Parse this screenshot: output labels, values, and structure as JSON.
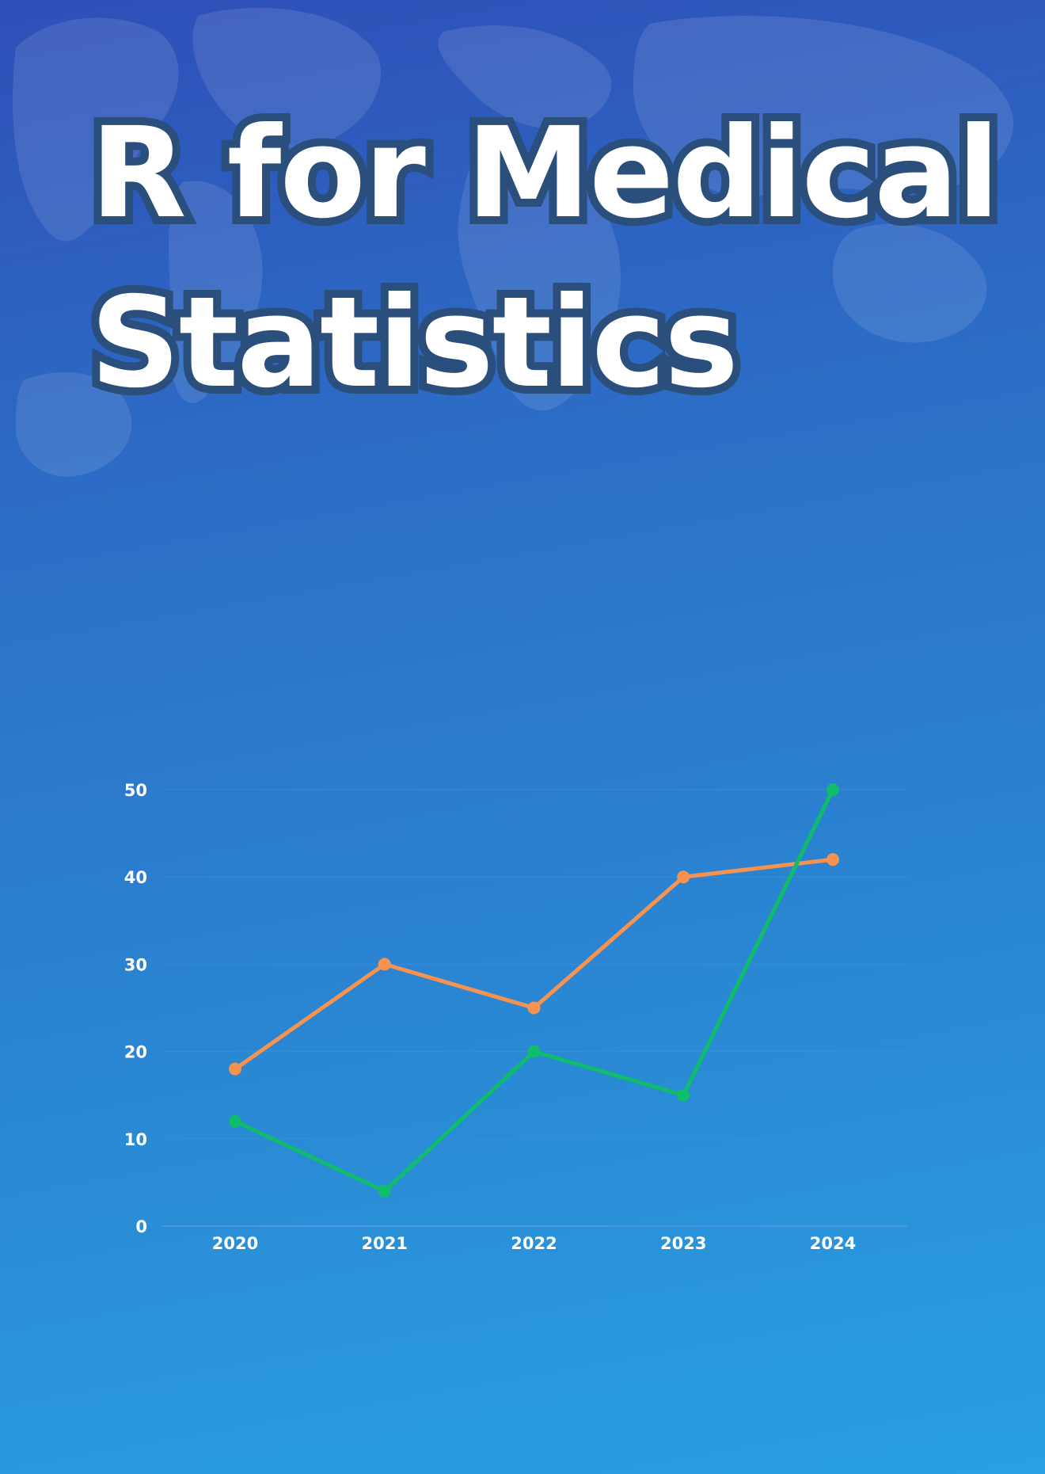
{
  "title": "R for Medical Statistics",
  "colors": {
    "background_top": "#2f4fb8",
    "background_bottom": "#29a0e2",
    "title_fill": "#ffffff",
    "title_outline": "#2b4f7c",
    "grid": "#4a8fd9",
    "tick_text": "#ffffff"
  },
  "chart_data": {
    "type": "line",
    "x": [
      "2020",
      "2021",
      "2022",
      "2023",
      "2024"
    ],
    "series": [
      {
        "color": "#f7934f",
        "values": [
          18,
          30,
          25,
          40,
          42
        ]
      },
      {
        "color": "#0fbd6a",
        "values": [
          12,
          4,
          20,
          15,
          50
        ]
      }
    ],
    "ylim": [
      0,
      50
    ],
    "yticks": [
      "0",
      "10",
      "20",
      "30",
      "40",
      "50"
    ],
    "grid": true,
    "legend": "none",
    "markers": "circle"
  }
}
